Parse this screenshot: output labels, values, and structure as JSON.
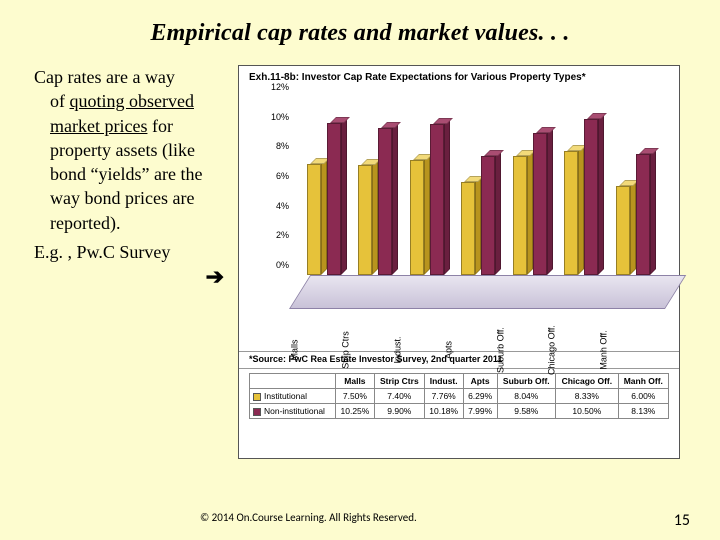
{
  "slide": {
    "title": "Empirical cap rates and market values. . .",
    "body": {
      "prefix": "Cap rates are a way",
      "mid1": "of ",
      "underlined": "quoting observed market prices",
      "mid2": " for property assets (like bond “yields” are the way bond prices are reported).",
      "eg": "E.g. , Pw.C Survey",
      "arrow": "➔"
    }
  },
  "chart": {
    "type": "bar",
    "title": "Exh.11-8b: Investor Cap Rate Expectations for Various Property Types*",
    "source_note": "*Source: PwC Rea Estate Investor Survey, 2nd quarter 2011",
    "ymax": 12,
    "yticks": [
      "12%",
      "10%",
      "8%",
      "6%",
      "4%",
      "2%",
      "0%"
    ],
    "ytick_vals": [
      12,
      10,
      8,
      6,
      4,
      2,
      0
    ],
    "categories": [
      "Malls",
      "Strip Ctrs",
      "Indust.",
      "Apts",
      "Suburb Off.",
      "Chicago Off.",
      "Manh Off."
    ],
    "series": [
      {
        "name": "Institutional",
        "color": "#e6c23a",
        "color_top": "#f2da7a",
        "color_side": "#b8941e",
        "values": [
          7.5,
          7.4,
          7.76,
          6.29,
          8.04,
          8.33,
          6.0
        ],
        "labels": [
          "7.50%",
          "7.40%",
          "7.76%",
          "6.29%",
          "8.04%",
          "8.33%",
          "6.00%"
        ]
      },
      {
        "name": "Non-institutional",
        "color": "#8b2a52",
        "color_top": "#a94d72",
        "color_side": "#6a1f3f",
        "values": [
          10.25,
          9.9,
          10.18,
          7.99,
          9.58,
          10.5,
          8.13
        ],
        "labels": [
          "10.25%",
          "9.90%",
          "10.18%",
          "7.99%",
          "9.58%",
          "10.50%",
          "8.13%"
        ]
      }
    ],
    "background_color": "#ffffff",
    "floor_color_top": "#e9e5f0",
    "floor_color_bottom": "#c9c2d8"
  },
  "footer": {
    "copyright": "© 2014 On.Course Learning. All Rights Reserved.",
    "page": "15"
  }
}
